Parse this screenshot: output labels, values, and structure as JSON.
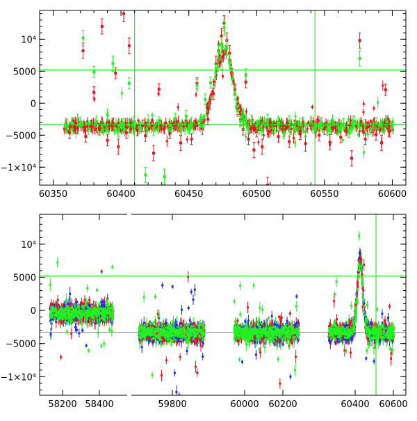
{
  "colors": {
    "red": "#e8141e",
    "green": "#22f022",
    "blue": "#1e28e6",
    "reference_line": "#22f022",
    "axis": "#000000"
  },
  "chart_data": [
    {
      "type": "scatter",
      "title": "",
      "xlabel": "",
      "ylabel": "",
      "xlim": [
        60340,
        60610
      ],
      "ylim": [
        -12800,
        14500
      ],
      "x_ticks": [
        60350,
        60400,
        60450,
        60500,
        60550,
        60600
      ],
      "x_tick_labels": [
        "60350",
        "60400",
        "60450",
        "60500",
        "60550",
        "60600"
      ],
      "y_ticks": [
        -10000,
        -5000,
        0,
        5000,
        10000
      ],
      "y_tick_labels": [
        "−1×10⁴",
        "−5000",
        "0",
        "5000",
        "10⁴"
      ],
      "hlines": [
        5200,
        -3300
      ],
      "vlines": [
        60410,
        60543
      ],
      "error_bars": true,
      "series": [
        {
          "color": "red",
          "points": [
            [
              60362,
              -4600
            ],
            [
              60368,
              -3900
            ],
            [
              60372,
              8200
            ],
            [
              60374,
              -5200
            ],
            [
              60378,
              -3600
            ],
            [
              60380,
              1700
            ],
            [
              60384,
              -4100
            ],
            [
              60386,
              12000
            ],
            [
              60390,
              -5800
            ],
            [
              60394,
              -3300
            ],
            [
              60396,
              4700
            ],
            [
              60398,
              -6800
            ],
            [
              60402,
              14000
            ],
            [
              60404,
              -4600
            ],
            [
              60406,
              9000
            ],
            [
              60412,
              -4200
            ],
            [
              60416,
              -3500
            ],
            [
              60418,
              -5100
            ],
            [
              60424,
              -7800
            ],
            [
              60428,
              2200
            ],
            [
              60432,
              -3900
            ],
            [
              60436,
              -4700
            ],
            [
              60440,
              -3300
            ],
            [
              60444,
              -6200
            ],
            [
              60448,
              -2800
            ],
            [
              60452,
              -5600
            ],
            [
              60456,
              3100
            ],
            [
              60460,
              -4000
            ],
            [
              60464,
              -2500
            ],
            [
              60468,
              1500
            ],
            [
              60470,
              6200
            ],
            [
              60472,
              8200
            ],
            [
              60474,
              10500
            ],
            [
              60476,
              12500
            ],
            [
              60478,
              9800
            ],
            [
              60480,
              7800
            ],
            [
              60482,
              4600
            ],
            [
              60484,
              2100
            ],
            [
              60486,
              -900
            ],
            [
              60488,
              -2600
            ],
            [
              60490,
              -4100
            ],
            [
              60492,
              3300
            ],
            [
              60494,
              -5600
            ],
            [
              60496,
              -3700
            ],
            [
              60498,
              -7300
            ],
            [
              60500,
              -4400
            ],
            [
              60504,
              -6800
            ],
            [
              60508,
              -12800
            ],
            [
              60512,
              -3900
            ],
            [
              60516,
              -5200
            ],
            [
              60520,
              -4300
            ],
            [
              60524,
              -6000
            ],
            [
              60528,
              -3500
            ],
            [
              60532,
              -4800
            ],
            [
              60536,
              -6300
            ],
            [
              60540,
              -3200
            ],
            [
              60546,
              -5000
            ],
            [
              60550,
              -4000
            ],
            [
              60554,
              -6100
            ],
            [
              60558,
              -3800
            ],
            [
              60562,
              -5300
            ],
            [
              60566,
              -4200
            ],
            [
              60570,
              -8600
            ],
            [
              60576,
              9800
            ],
            [
              60580,
              -5600
            ],
            [
              60584,
              -3700
            ],
            [
              60588,
              -4900
            ],
            [
              60592,
              -6200
            ],
            [
              60595,
              2100
            ],
            [
              60598,
              -4400
            ]
          ]
        },
        {
          "color": "green",
          "points": [
            [
              60360,
              -3400
            ],
            [
              60364,
              -3100
            ],
            [
              60368,
              -2600
            ],
            [
              60372,
              10200
            ],
            [
              60376,
              -4000
            ],
            [
              60380,
              4900
            ],
            [
              60382,
              -2900
            ],
            [
              60386,
              -3600
            ],
            [
              60390,
              -1800
            ],
            [
              60394,
              6200
            ],
            [
              60398,
              -4400
            ],
            [
              60402,
              -3300
            ],
            [
              60406,
              3100
            ],
            [
              60410,
              -2900
            ],
            [
              60414,
              -3800
            ],
            [
              60418,
              -11200
            ],
            [
              60420,
              -2700
            ],
            [
              60424,
              -4200
            ],
            [
              60428,
              -3000
            ],
            [
              60432,
              -11500
            ],
            [
              60436,
              -3500
            ],
            [
              60440,
              -2400
            ],
            [
              60444,
              -3900
            ],
            [
              60448,
              -2000
            ],
            [
              60452,
              -3100
            ],
            [
              60456,
              2800
            ],
            [
              60460,
              -3600
            ],
            [
              60462,
              600
            ],
            [
              60466,
              3200
            ],
            [
              60470,
              5500
            ],
            [
              60472,
              7900
            ],
            [
              60474,
              9100
            ],
            [
              60476,
              11800
            ],
            [
              60478,
              8700
            ],
            [
              60480,
              6400
            ],
            [
              60482,
              3800
            ],
            [
              60484,
              1500
            ],
            [
              60486,
              -1200
            ],
            [
              60488,
              -2800
            ],
            [
              60490,
              -3300
            ],
            [
              60492,
              4500
            ],
            [
              60494,
              -3800
            ],
            [
              60496,
              -2700
            ],
            [
              60500,
              -3500
            ],
            [
              60504,
              -4200
            ],
            [
              60508,
              -2600
            ],
            [
              60512,
              -3900
            ],
            [
              60516,
              -3000
            ],
            [
              60520,
              -4600
            ],
            [
              60524,
              -2800
            ],
            [
              60528,
              -3700
            ],
            [
              60532,
              -3200
            ],
            [
              60536,
              -4400
            ],
            [
              60540,
              -2900
            ],
            [
              60544,
              -3600
            ],
            [
              60548,
              -3100
            ],
            [
              60552,
              -4100
            ],
            [
              60556,
              -2700
            ],
            [
              60560,
              -3800
            ],
            [
              60564,
              -3300
            ],
            [
              60568,
              -4500
            ],
            [
              60572,
              -2900
            ],
            [
              60576,
              7000
            ],
            [
              60580,
              -3400
            ],
            [
              60584,
              -4000
            ],
            [
              60588,
              -3100
            ],
            [
              60592,
              -3600
            ],
            [
              60596,
              -2900
            ],
            [
              60600,
              -3500
            ]
          ]
        }
      ]
    },
    {
      "type": "scatter",
      "title": "",
      "xlabel": "",
      "ylabel": "",
      "xlim": [
        57.0,
        600.0
      ],
      "ylim": [
        -12800,
        14500
      ],
      "x_ticks_positions": [
        90,
        143,
        248,
        352,
        407,
        511,
        566
      ],
      "x_tick_labels": [
        "58200",
        "58400",
        "59800",
        "60000",
        "60200",
        "60400",
        "60600"
      ],
      "y_ticks": [
        -10000,
        -5000,
        0,
        5000,
        10000
      ],
      "y_tick_labels": [
        "−1×10⁴",
        "−5000",
        "0",
        "5000",
        "10⁴"
      ],
      "hlines": [
        5200,
        -3300
      ],
      "vlines": [],
      "segments": [
        {
          "name": "58200–58400",
          "x_range": [
            58160,
            58420
          ]
        },
        {
          "name": "59800",
          "x_range": [
            59650,
            59870
          ]
        },
        {
          "name": "60000–60200",
          "x_range": [
            59980,
            60240
          ]
        },
        {
          "name": "60400–60600",
          "x_range": [
            60350,
            60610
          ]
        }
      ],
      "error_bars": true,
      "note": "Dense scatter of red, green and blue points in four observation segments; peak near x=60475 matches upper panel."
    }
  ]
}
